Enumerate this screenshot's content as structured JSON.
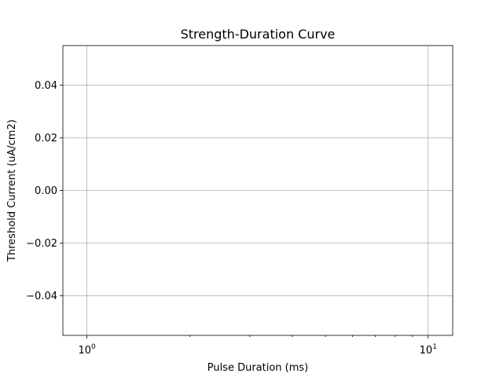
{
  "chart_data": {
    "type": "line",
    "title": "Strength-Duration Curve",
    "xlabel": "Pulse Duration (ms)",
    "ylabel": "Threshold Current (uA/cm2)",
    "xscale": "log",
    "xlim": [
      0.85,
      11.8
    ],
    "ylim": [
      -0.055,
      0.055
    ],
    "x_major_ticks": [
      1,
      10
    ],
    "x_tick_labels": [
      {
        "base": "10",
        "exp": "0"
      },
      {
        "base": "10",
        "exp": "1"
      }
    ],
    "x_minor_ticks": [
      2,
      3,
      4,
      5,
      6,
      7,
      8,
      9
    ],
    "y_ticks": [
      -0.04,
      -0.02,
      0.0,
      0.02,
      0.04
    ],
    "y_tick_labels": [
      "−0.04",
      "−0.02",
      "0.00",
      "0.02",
      "0.04"
    ],
    "grid": true,
    "series": []
  }
}
